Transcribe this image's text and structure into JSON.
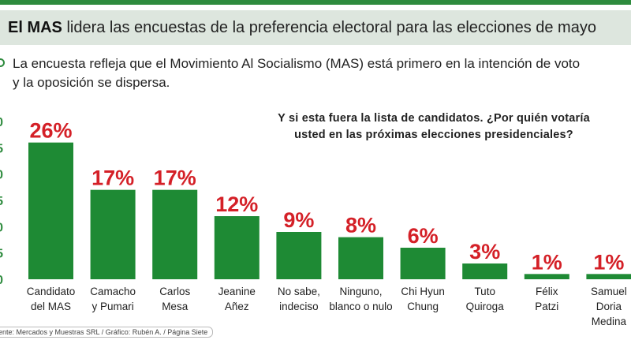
{
  "header": {
    "title_bold": "El MAS",
    "title_rest": " lidera las encuestas de la preferencia electoral  para las elecciones de mayo"
  },
  "intro": {
    "line1": "La encuesta refleja que el Movimiento Al Socialismo (MAS) está primero en la intención de voto",
    "line2": "y la oposición se dispersa."
  },
  "question": {
    "line1": "Y si esta fuera la lista de candidatos. ¿Por quién votaría",
    "line2": "usted en las próximas elecciones presidenciales?"
  },
  "source": "uente: Mercados y Muestras SRL  /  Gráfico: Rubén A.  /  Página Siete",
  "colors": {
    "bar": "#1e8a34",
    "value_label": "#d42027",
    "axis_tick": "#2e8b3e",
    "header_band": "#dde6de",
    "top_rule": "#2e8b3e"
  },
  "chart_data": {
    "type": "bar",
    "categories": [
      [
        "Candidato",
        "del MAS"
      ],
      [
        "Camacho",
        "y Pumari"
      ],
      [
        "Carlos",
        "Mesa"
      ],
      [
        "Jeanine",
        "Añez"
      ],
      [
        "No sabe,",
        "indeciso"
      ],
      [
        "Ninguno,",
        "blanco o nulo"
      ],
      [
        "Chi Hyun",
        "Chung"
      ],
      [
        "Tuto",
        "Quiroga"
      ],
      [
        "Félix",
        "Patzi"
      ],
      [
        "Samuel",
        "Doria",
        "Medina"
      ]
    ],
    "values": [
      26,
      17,
      17,
      12,
      9,
      8,
      6,
      3,
      1,
      1
    ],
    "value_labels": [
      "26%",
      "17%",
      "17%",
      "12%",
      "9%",
      "8%",
      "6%",
      "3%",
      "1%",
      "1%"
    ],
    "y_tick_labels": [
      "0",
      "5",
      "0",
      "5",
      "0",
      "5",
      "0"
    ],
    "ylim": [
      0,
      30
    ],
    "grid": false
  }
}
